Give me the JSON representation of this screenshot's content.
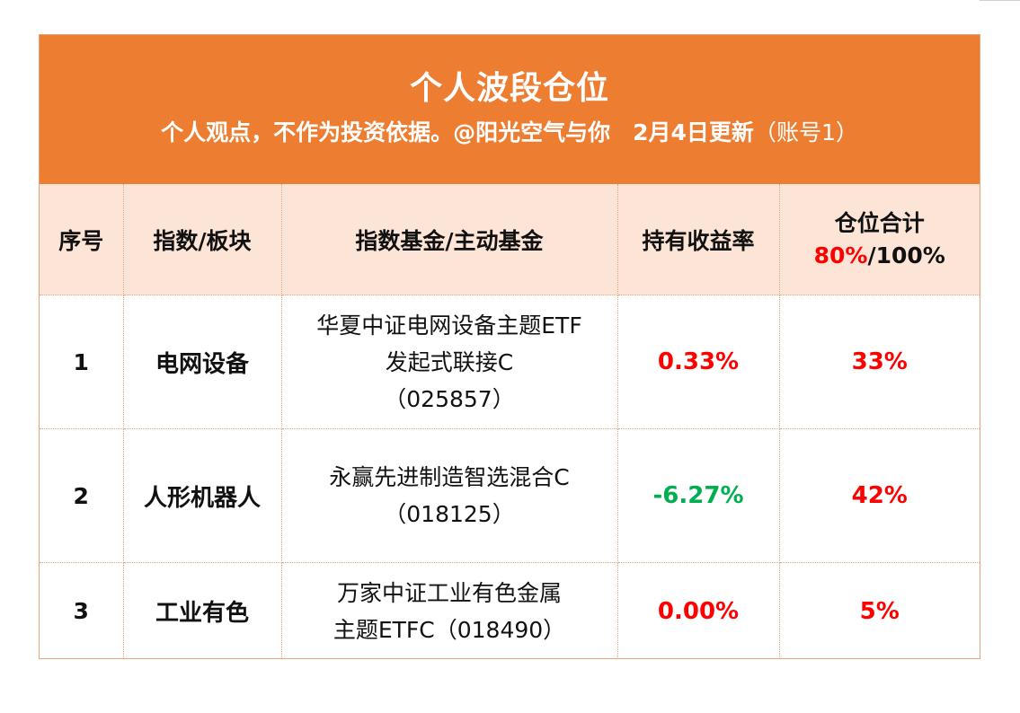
{
  "header": {
    "title": "个人波段仓位",
    "subtitle": "个人观点，不作为投资依据。@阳光空气与你　2月4日更新",
    "subtitle_note": "（账号1）"
  },
  "columns": {
    "index": "序号",
    "sector": "指数/板块",
    "fund": "指数基金/主动基金",
    "return_rate": "持有收益率",
    "position_total_label": "仓位合计",
    "position_used": "80%",
    "position_sep": "/",
    "position_max": "100%"
  },
  "rows": [
    {
      "index": "1",
      "sector": "电网设备",
      "fund_lines": [
        "华夏中证电网设备主题ETF",
        "发起式联接C",
        "（025857）"
      ],
      "return_rate": "0.33%",
      "return_color": "#ff0000",
      "position": "33%"
    },
    {
      "index": "2",
      "sector": "人形机器人",
      "fund_lines": [
        "永赢先进制造智选混合C",
        "（018125）"
      ],
      "return_rate": "-6.27%",
      "return_color": "#00b050",
      "position": "42%"
    },
    {
      "index": "3",
      "sector": "工业有色",
      "fund_lines": [
        "万家中证工业有色金属",
        "主题ETFC（018490）"
      ],
      "return_rate": "0.00%",
      "return_color": "#ff0000",
      "position": "5%"
    }
  ],
  "colors": {
    "header_bg": "#ed7d31",
    "table_head_bg": "#fce4d6",
    "positive": "#ff0000",
    "negative": "#00b050"
  }
}
